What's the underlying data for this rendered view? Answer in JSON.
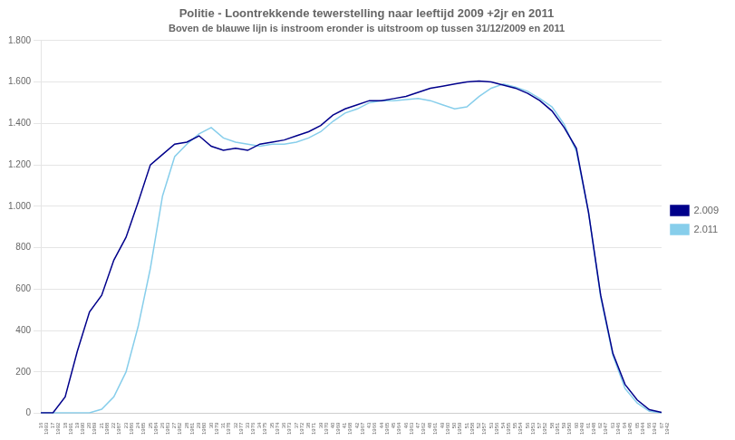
{
  "chart_data": {
    "type": "line",
    "title": "Politie - Loontrekkende tewerstelling naar leeftijd 2009 +2jr en 2011",
    "subtitle": "Boven de blauwe lijn is instroom eronder is uitstroom op tussen 31/12/2009 en 2011",
    "categories": [
      "16\n1993",
      "17\n1992",
      "18\n1991",
      "19\n1990",
      "20\n1989",
      "21\n1988",
      "22\n1987",
      "23\n1986",
      "24\n1985",
      "25\n1984",
      "26\n1983",
      "27\n1982",
      "28\n1981",
      "29\n1980",
      "30\n1979",
      "31\n1978",
      "32\n1977",
      "33\n1976",
      "34\n1975",
      "35\n1974",
      "36\n1973",
      "37\n1972",
      "38\n1971",
      "39\n1970",
      "40\n1969",
      "41\n1968",
      "42\n1967",
      "43\n1966",
      "44\n1965",
      "45\n1964",
      "46\n1963",
      "47\n1962",
      "48\n1961",
      "49\n1960",
      "50\n1959",
      "51\n1958",
      "52\n1957",
      "53\n1956",
      "54\n1955",
      "55\n1954",
      "56\n1953",
      "57\n1952",
      "58\n1951",
      "59\n1950",
      "60\n1949",
      "61\n1948",
      "62\n1947",
      "63\n1946",
      "64\n1945",
      "65\n1944",
      "66\n1943",
      "67\n1942"
    ],
    "series": [
      {
        "name": "2.009",
        "color": "#00008B",
        "values": [
          3,
          3,
          80,
          300,
          490,
          570,
          740,
          850,
          1020,
          1200,
          1250,
          1300,
          1310,
          1340,
          1290,
          1270,
          1280,
          1270,
          1300,
          1310,
          1320,
          1340,
          1360,
          1390,
          1440,
          1470,
          1490,
          1510,
          1510,
          1520,
          1530,
          1550,
          1570,
          1580,
          1590,
          1600,
          1605,
          1600,
          1585,
          1570,
          1545,
          1510,
          1460,
          1380,
          1280,
          970,
          570,
          290,
          140,
          65,
          18,
          5
        ]
      },
      {
        "name": "2.011",
        "color": "#87CEEB",
        "values": [
          3,
          3,
          3,
          3,
          3,
          20,
          80,
          200,
          420,
          700,
          1050,
          1240,
          1300,
          1350,
          1380,
          1330,
          1310,
          1300,
          1290,
          1300,
          1300,
          1310,
          1330,
          1360,
          1410,
          1450,
          1470,
          1500,
          1510,
          1510,
          1515,
          1520,
          1510,
          1490,
          1470,
          1480,
          1530,
          1570,
          1590,
          1575,
          1555,
          1520,
          1480,
          1395,
          1265,
          970,
          560,
          280,
          120,
          50,
          10,
          3
        ]
      }
    ],
    "ylim": [
      0,
      1800
    ],
    "yticks": [
      0,
      200,
      400,
      600,
      800,
      {
        "value": 1000,
        "label": "1.000"
      },
      {
        "value": 1200,
        "label": "1.200"
      },
      {
        "value": 1400,
        "label": "1.400"
      },
      {
        "value": 1600,
        "label": "1.600"
      },
      {
        "value": 1800,
        "label": "1.800"
      }
    ],
    "grid": true,
    "legend": "right"
  }
}
